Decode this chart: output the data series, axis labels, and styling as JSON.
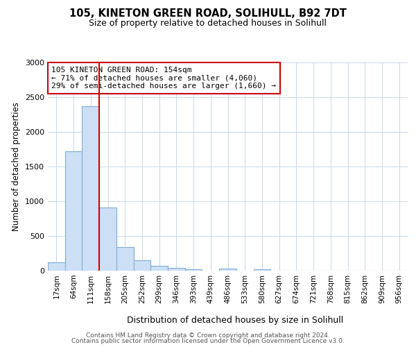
{
  "title": "105, KINETON GREEN ROAD, SOLIHULL, B92 7DT",
  "subtitle": "Size of property relative to detached houses in Solihull",
  "xlabel": "Distribution of detached houses by size in Solihull",
  "ylabel": "Number of detached properties",
  "bar_labels": [
    "17sqm",
    "64sqm",
    "111sqm",
    "158sqm",
    "205sqm",
    "252sqm",
    "299sqm",
    "346sqm",
    "393sqm",
    "439sqm",
    "486sqm",
    "533sqm",
    "580sqm",
    "627sqm",
    "674sqm",
    "721sqm",
    "768sqm",
    "815sqm",
    "862sqm",
    "909sqm",
    "956sqm"
  ],
  "bar_values": [
    120,
    1720,
    2370,
    910,
    340,
    155,
    75,
    40,
    25,
    0,
    30,
    0,
    25,
    0,
    0,
    0,
    0,
    0,
    0,
    0,
    0
  ],
  "bar_color": "#ccdff5",
  "bar_edgecolor": "#7eadd4",
  "vline_color": "#cc0000",
  "annotation_line1": "105 KINETON GREEN ROAD: 154sqm",
  "annotation_line2": "← 71% of detached houses are smaller (4,060)",
  "annotation_line3": "29% of semi-detached houses are larger (1,660) →",
  "annotation_box_edgecolor": "#cc0000",
  "ylim": [
    0,
    3000
  ],
  "yticks": [
    0,
    500,
    1000,
    1500,
    2000,
    2500,
    3000
  ],
  "footer1": "Contains HM Land Registry data © Crown copyright and database right 2024.",
  "footer2": "Contains public sector information licensed under the Open Government Licence v3.0.",
  "background_color": "#ffffff",
  "grid_color": "#c8d8e8"
}
